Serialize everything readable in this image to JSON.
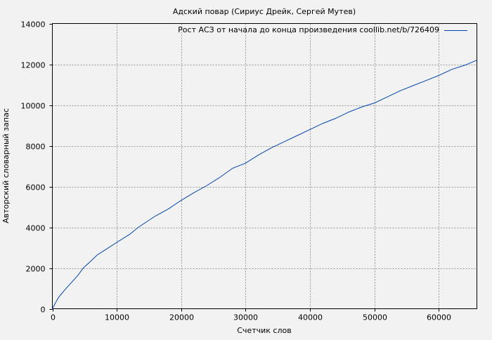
{
  "chart_data": {
    "type": "line",
    "title": "Адский повар (Сириус Дрейк, Сергей Мутев)",
    "xlabel": "Счетчик слов",
    "ylabel": "Авторский словарный запас",
    "xlim": [
      0,
      65900
    ],
    "ylim": [
      0,
      14000
    ],
    "xticks": [
      0,
      10000,
      20000,
      30000,
      40000,
      50000,
      60000
    ],
    "yticks": [
      0,
      2000,
      4000,
      6000,
      8000,
      10000,
      12000,
      14000
    ],
    "grid": true,
    "legend_position": "top-right",
    "series": [
      {
        "name": "Рост АСЗ от начала до конца произведения coollib.net/b/726409",
        "color": "#0044aa",
        "x": [
          0,
          500,
          1000,
          2000,
          3000,
          4000,
          4800,
          6000,
          7000,
          8000,
          10000,
          12000,
          13350,
          16000,
          18000,
          20000,
          22000,
          24000,
          26000,
          28000,
          30000,
          32000,
          34000,
          36000,
          38000,
          40000,
          42000,
          44000,
          46000,
          48000,
          50000,
          52000,
          54000,
          56000,
          58000,
          60000,
          62000,
          64000,
          65900
        ],
        "y": [
          0,
          300,
          575,
          950,
          1300,
          1650,
          2000,
          2350,
          2650,
          2850,
          3260,
          3650,
          4000,
          4550,
          4900,
          5320,
          5700,
          6050,
          6450,
          6900,
          7150,
          7550,
          7900,
          8200,
          8500,
          8800,
          9100,
          9350,
          9650,
          9900,
          10100,
          10400,
          10700,
          10950,
          11200,
          11450,
          11750,
          11950,
          12200
        ]
      }
    ]
  }
}
